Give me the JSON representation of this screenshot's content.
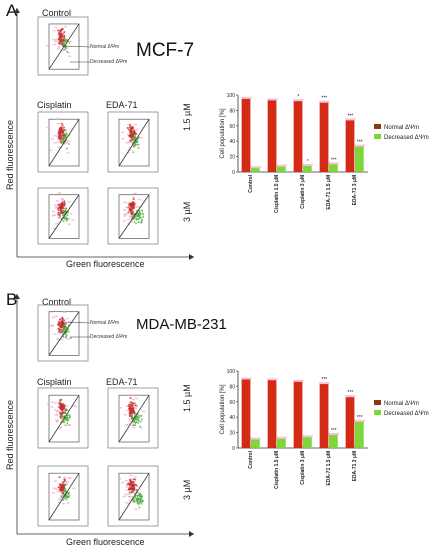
{
  "panels": [
    {
      "letter": "A",
      "cell_line": "MCF-7",
      "labels": {
        "control": "Control",
        "cisplatin": "Cisplatin",
        "eda": "EDA-71",
        "conc1": "1.5 µM",
        "conc2": "3 µM",
        "ylabel": "Red fluorescence",
        "xlabel": "Green fluorescence",
        "normal_gate": "Normal ΔΨm",
        "decreased_gate": "Decreased ΔΨm"
      }
    },
    {
      "letter": "B",
      "cell_line": "MDA-MB-231",
      "labels": {
        "control": "Control",
        "cisplatin": "Cisplatin",
        "eda": "EDA-71",
        "conc1": "1.5 µM",
        "conc2": "3 µM",
        "ylabel": "Red fluorescence",
        "xlabel": "Green fluorescence",
        "normal_gate": "Normal ΔΨm",
        "decreased_gate": "Decreased ΔΨm"
      }
    }
  ],
  "colors": {
    "normal": "#d42b16",
    "normal_legend": "#8b3a14",
    "decreased": "#7fd63a",
    "decreased_legend": "#7fd63a",
    "dot_red": "#c4302a",
    "dot_green": "#4caf3a",
    "dot_pink": "#f39ac7"
  },
  "chart_data": [
    {
      "type": "bar",
      "ylabel": "Cell population [%]",
      "ylim": [
        0,
        100
      ],
      "yticks": [
        0,
        20,
        40,
        60,
        80,
        100
      ],
      "categories": [
        "Control",
        "Cisplatin 1.5 µM",
        "Cisplatin 3 µM",
        "EDA-71 1.5 µM",
        "EDA-71 3 µM"
      ],
      "series": [
        {
          "name": "Normal ΔΨm",
          "values": [
            95,
            93,
            92,
            90,
            67
          ]
        },
        {
          "name": "Decreased ΔΨm",
          "values": [
            5,
            7,
            8,
            10,
            33
          ]
        }
      ],
      "annotations": [
        {
          "category": 2,
          "series": 0,
          "text": "*"
        },
        {
          "category": 3,
          "series": 0,
          "text": "***"
        },
        {
          "category": 4,
          "series": 0,
          "text": "***"
        },
        {
          "category": 2,
          "series": 1,
          "text": "*"
        },
        {
          "category": 3,
          "series": 1,
          "text": "***"
        },
        {
          "category": 4,
          "series": 1,
          "text": "***"
        }
      ],
      "legend": "right"
    },
    {
      "type": "bar",
      "ylabel": "Cell population [%]",
      "ylim": [
        0,
        100
      ],
      "yticks": [
        0,
        20,
        40,
        60,
        80,
        100
      ],
      "categories": [
        "Control",
        "Cisplatin 1.5 µM",
        "Cisplatin 3 µM",
        "EDA-71 1.5 µM",
        "EDA-71 3 µM"
      ],
      "series": [
        {
          "name": "Normal ΔΨm",
          "values": [
            89,
            88,
            86,
            83,
            66
          ]
        },
        {
          "name": "Decreased ΔΨm",
          "values": [
            11,
            12,
            14,
            17,
            34
          ]
        }
      ],
      "annotations": [
        {
          "category": 3,
          "series": 0,
          "text": "***"
        },
        {
          "category": 4,
          "series": 0,
          "text": "***"
        },
        {
          "category": 3,
          "series": 1,
          "text": "***"
        },
        {
          "category": 4,
          "series": 1,
          "text": "***"
        }
      ],
      "legend": "right"
    }
  ]
}
